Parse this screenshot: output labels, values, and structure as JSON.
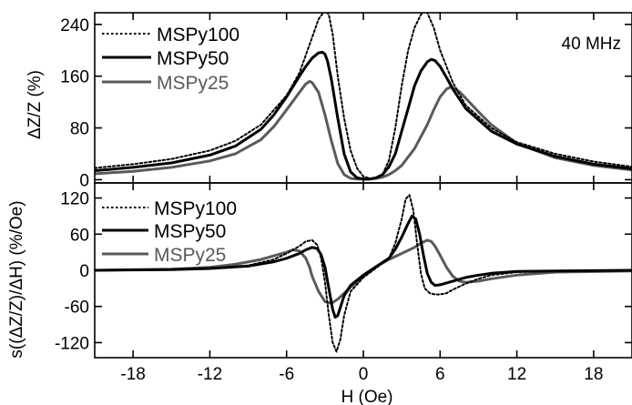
{
  "chart_data": [
    {
      "type": "line",
      "panel": "top",
      "xlabel": "H (Oe)",
      "ylabel": "ΔZ/Z (%)",
      "xlim": [
        -21,
        21
      ],
      "ylim": [
        -5,
        258
      ],
      "x_ticks": [
        -18,
        -12,
        -6,
        0,
        6,
        12,
        18
      ],
      "y_ticks": [
        0,
        80,
        160,
        240
      ],
      "y_tick_labels": [
        "0",
        "80",
        "160",
        "240"
      ],
      "annotation": "40 MHz",
      "legend_position": "top-left",
      "series": [
        {
          "name": "MSPy100",
          "color": "#000000",
          "style": "dotted",
          "x": [
            -21,
            -18,
            -15,
            -12,
            -10,
            -8,
            -6,
            -5,
            -4,
            -3.5,
            -3,
            -2.7,
            -2.4,
            -2,
            -1.5,
            -1,
            -0.5,
            0,
            0.5,
            1,
            1.5,
            2,
            2.5,
            3,
            3.5,
            4,
            4.5,
            4.8,
            5,
            5.5,
            6,
            7,
            8,
            10,
            12,
            15,
            18,
            21
          ],
          "y": [
            18,
            24,
            32,
            45,
            60,
            85,
            130,
            165,
            220,
            248,
            262,
            255,
            225,
            160,
            95,
            45,
            18,
            5,
            2,
            3,
            8,
            30,
            80,
            145,
            200,
            235,
            255,
            262,
            258,
            235,
            200,
            150,
            115,
            80,
            58,
            40,
            28,
            20
          ]
        },
        {
          "name": "MSPy50",
          "color": "#000000",
          "style": "solid",
          "x": [
            -21,
            -18,
            -15,
            -12,
            -10,
            -8,
            -7,
            -6,
            -5,
            -4.5,
            -4,
            -3.5,
            -3.2,
            -3,
            -2.8,
            -2.5,
            -2,
            -1.5,
            -1,
            -0.5,
            0,
            0.5,
            1,
            1.5,
            2,
            2.5,
            3,
            3.5,
            4,
            4.5,
            5,
            5.3,
            5.6,
            6,
            6.5,
            7,
            8,
            10,
            12,
            15,
            18,
            21
          ],
          "y": [
            14,
            19,
            26,
            38,
            52,
            78,
            100,
            128,
            160,
            175,
            188,
            196,
            197,
            194,
            183,
            155,
            95,
            40,
            12,
            3,
            1,
            1,
            3,
            8,
            20,
            40,
            75,
            110,
            145,
            168,
            182,
            186,
            184,
            175,
            158,
            140,
            110,
            75,
            55,
            36,
            24,
            17
          ]
        },
        {
          "name": "MSPy25",
          "color": "#5a5a5a",
          "style": "solid",
          "x": [
            -21,
            -18,
            -15,
            -12,
            -10,
            -8,
            -7,
            -6,
            -5,
            -4.5,
            -4.2,
            -4,
            -3.5,
            -3,
            -2.5,
            -2,
            -1.5,
            -1,
            -0.5,
            0,
            0.5,
            1,
            1.5,
            2,
            2.5,
            3,
            4,
            5,
            5.5,
            6,
            6.5,
            6.8,
            7,
            7.5,
            8,
            9,
            10,
            12,
            15,
            18,
            21
          ],
          "y": [
            9,
            13,
            19,
            29,
            40,
            62,
            82,
            108,
            135,
            148,
            152,
            150,
            135,
            100,
            60,
            25,
            8,
            2,
            1,
            1,
            1,
            2,
            4,
            8,
            14,
            22,
            48,
            85,
            108,
            128,
            140,
            143,
            142,
            136,
            126,
            105,
            85,
            56,
            34,
            22,
            15
          ]
        }
      ]
    },
    {
      "type": "line",
      "panel": "bottom",
      "xlabel": "H (Oe)",
      "ylabel": "s((ΔZ/Z)/ΔH) (%/Oe)",
      "xlim": [
        -21,
        21
      ],
      "ylim": [
        -145,
        145
      ],
      "x_ticks": [
        -18,
        -12,
        -6,
        0,
        6,
        12,
        18
      ],
      "x_tick_labels": [
        "-18",
        "-12",
        "-6",
        "0",
        "6",
        "12",
        "18"
      ],
      "y_ticks": [
        -120,
        -60,
        0,
        60,
        120
      ],
      "y_tick_labels": [
        "-120",
        "-60",
        "0",
        "60",
        "120"
      ],
      "legend_position": "top-left",
      "series": [
        {
          "name": "MSPy100",
          "color": "#000000",
          "style": "dotted",
          "x": [
            -21,
            -15,
            -12,
            -9,
            -7,
            -6,
            -5,
            -4.5,
            -4,
            -3.6,
            -3.3,
            -3,
            -2.7,
            -2.4,
            -2.1,
            -1.8,
            -1.5,
            -1,
            0,
            1,
            2,
            2.5,
            3,
            3.3,
            3.6,
            3.9,
            4.2,
            4.5,
            4.8,
            5.2,
            5.6,
            6,
            6.5,
            7,
            8,
            9,
            10,
            12,
            15,
            21
          ],
          "y": [
            0,
            1,
            3,
            8,
            18,
            28,
            40,
            48,
            50,
            42,
            20,
            -20,
            -75,
            -120,
            -135,
            -115,
            -75,
            -35,
            -12,
            4,
            20,
            45,
            85,
            118,
            125,
            100,
            45,
            -5,
            -30,
            -38,
            -40,
            -40,
            -38,
            -32,
            -22,
            -14,
            -8,
            -3,
            -1,
            0
          ]
        },
        {
          "name": "MSPy50",
          "color": "#000000",
          "style": "solid",
          "x": [
            -21,
            -15,
            -12,
            -9,
            -7,
            -6,
            -5,
            -4.5,
            -4,
            -3.6,
            -3.3,
            -3,
            -2.7,
            -2.4,
            -2.2,
            -2,
            -1.8,
            -1.5,
            -1,
            0,
            1,
            2,
            2.5,
            3,
            3.5,
            3.8,
            4.1,
            4.4,
            4.7,
            5,
            5.3,
            5.6,
            6,
            7,
            8,
            9,
            10,
            12,
            15,
            21
          ],
          "y": [
            0,
            1,
            3,
            7,
            14,
            20,
            28,
            34,
            38,
            36,
            26,
            5,
            -30,
            -65,
            -78,
            -75,
            -62,
            -42,
            -25,
            -8,
            6,
            20,
            35,
            55,
            78,
            90,
            85,
            60,
            25,
            -5,
            -20,
            -25,
            -24,
            -18,
            -12,
            -8,
            -5,
            -2,
            -1,
            0
          ]
        },
        {
          "name": "MSPy25",
          "color": "#5a5a5a",
          "style": "solid",
          "x": [
            -21,
            -15,
            -12,
            -10,
            -8,
            -7,
            -6,
            -5.5,
            -5,
            -4.5,
            -4.2,
            -4,
            -3.5,
            -3,
            -2.5,
            -2,
            -1.5,
            -1,
            0,
            1,
            2,
            3,
            4,
            4.5,
            5,
            5.3,
            5.6,
            6,
            6.5,
            7,
            7.5,
            8,
            9,
            10,
            12,
            15,
            21
          ],
          "y": [
            0,
            2,
            5,
            10,
            18,
            24,
            30,
            34,
            32,
            20,
            5,
            -10,
            -35,
            -52,
            -55,
            -48,
            -38,
            -28,
            -10,
            6,
            18,
            28,
            38,
            45,
            50,
            48,
            40,
            25,
            5,
            -10,
            -18,
            -20,
            -18,
            -14,
            -8,
            -3,
            -1
          ]
        }
      ]
    }
  ]
}
